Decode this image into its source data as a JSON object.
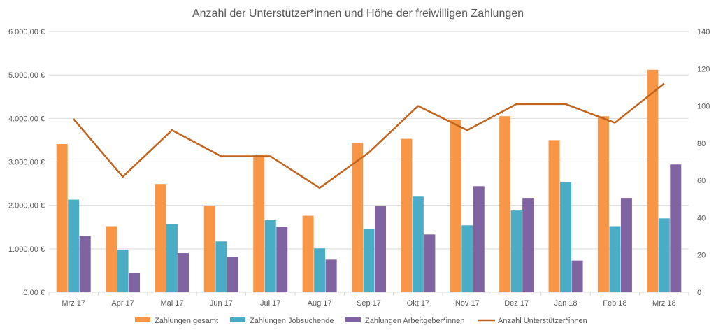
{
  "chart_data": {
    "type": "bar",
    "title": "Anzahl der Unterstützer*innen und Höhe der freiwilligen Zahlungen",
    "categories": [
      "Mrz 17",
      "Apr 17",
      "Mai 17",
      "Jun 17",
      "Jul 17",
      "Aug 17",
      "Sep 17",
      "Okt 17",
      "Nov 17",
      "Dez 17",
      "Jan 18",
      "Feb 18",
      "Mrz 18"
    ],
    "y_left": {
      "min": 0,
      "max": 6000,
      "step": 1000,
      "tick_labels": [
        "0,00 €",
        "1.000,00 €",
        "2.000,00 €",
        "3.000,00 €",
        "4.000,00 €",
        "5.000,00 €",
        "6.000,00 €"
      ]
    },
    "y_right": {
      "min": 0,
      "max": 140,
      "step": 20,
      "tick_labels": [
        "0",
        "20",
        "40",
        "60",
        "80",
        "100",
        "120",
        "140"
      ]
    },
    "series": [
      {
        "name": "Zahlungen gesamt",
        "type": "bar",
        "axis": "left",
        "color": "#f79646",
        "values": [
          3410,
          1520,
          2490,
          1990,
          3170,
          1760,
          3440,
          3530,
          3960,
          4050,
          3500,
          4050,
          5120
        ]
      },
      {
        "name": "Zahlungen Jobsuchende",
        "type": "bar",
        "axis": "left",
        "color": "#4bacc6",
        "values": [
          2130,
          980,
          1570,
          1170,
          1660,
          1010,
          1450,
          2200,
          1540,
          1880,
          2540,
          1520,
          1700
        ]
      },
      {
        "name": "Zahlungen Arbeitgeber*innen",
        "type": "bar",
        "axis": "left",
        "color": "#8064a2",
        "values": [
          1290,
          450,
          900,
          810,
          1510,
          750,
          1980,
          1330,
          2440,
          2170,
          730,
          2170,
          2940
        ]
      },
      {
        "name": "Anzahl Unterstützer*innen",
        "type": "line",
        "axis": "right",
        "color": "#c0631d",
        "values": [
          93,
          62,
          87,
          73,
          73,
          56,
          75,
          100,
          87,
          101,
          101,
          91,
          112
        ]
      }
    ],
    "grid": true,
    "legend_position": "bottom"
  }
}
